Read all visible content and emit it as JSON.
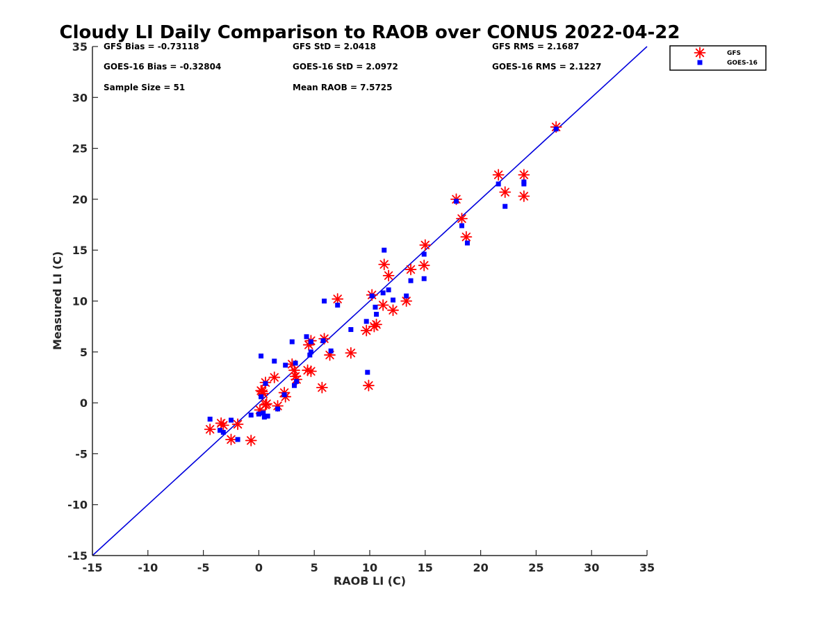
{
  "chart_data": {
    "type": "scatter",
    "title": "Cloudy LI Daily Comparison to RAOB over CONUS 2022-04-22",
    "xlabel": "RAOB LI (C)",
    "ylabel": "Measured LI (C)",
    "xlim": [
      -15,
      35
    ],
    "ylim": [
      -15,
      35
    ],
    "xticks": [
      -15,
      -10,
      -5,
      0,
      5,
      10,
      15,
      20,
      25,
      30,
      35
    ],
    "yticks": [
      -15,
      -10,
      -5,
      0,
      5,
      10,
      15,
      20,
      25,
      30,
      35
    ],
    "grid": false,
    "legend_position": "outside top-right",
    "reference_line": {
      "name": "1:1 line",
      "color": "#0000dd",
      "from": [
        -15,
        -15
      ],
      "to": [
        35,
        35
      ]
    },
    "stats": [
      [
        "GFS Bias = -0.73118",
        "GFS StD = 2.0418",
        "GFS RMS = 2.1687"
      ],
      [
        "GOES-16 Bias = -0.32804",
        "GOES-16 StD = 2.0972",
        "GOES-16 RMS = 2.1227"
      ],
      [
        "Sample Size = 51",
        "Mean RAOB = 7.5725",
        ""
      ]
    ],
    "series": [
      {
        "name": "GFS",
        "marker": "asterisk",
        "color": "#ff0000",
        "points": [
          [
            -4.4,
            -2.6
          ],
          [
            -3.4,
            -2.0
          ],
          [
            -3.2,
            -2.2
          ],
          [
            -2.5,
            -3.6
          ],
          [
            -1.9,
            -2.1
          ],
          [
            -0.7,
            -3.7
          ],
          [
            0.1,
            -0.7
          ],
          [
            0.2,
            1.2
          ],
          [
            0.3,
            1.1
          ],
          [
            0.4,
            0.9
          ],
          [
            0.6,
            2.0
          ],
          [
            0.6,
            -0.2
          ],
          [
            0.7,
            -0.1
          ],
          [
            1.4,
            2.5
          ],
          [
            1.7,
            -0.3
          ],
          [
            2.3,
            1.0
          ],
          [
            2.4,
            0.6
          ],
          [
            3.0,
            3.8
          ],
          [
            3.2,
            3.2
          ],
          [
            3.3,
            2.6
          ],
          [
            3.4,
            2.3
          ],
          [
            4.4,
            3.2
          ],
          [
            4.5,
            5.7
          ],
          [
            4.7,
            3.1
          ],
          [
            4.7,
            6.1
          ],
          [
            5.7,
            1.5
          ],
          [
            5.9,
            6.3
          ],
          [
            6.4,
            4.7
          ],
          [
            7.1,
            10.2
          ],
          [
            8.3,
            4.9
          ],
          [
            9.7,
            7.1
          ],
          [
            9.9,
            1.7
          ],
          [
            10.2,
            10.6
          ],
          [
            10.4,
            7.5
          ],
          [
            10.6,
            7.7
          ],
          [
            11.2,
            9.6
          ],
          [
            11.3,
            13.6
          ],
          [
            11.7,
            12.5
          ],
          [
            12.1,
            9.1
          ],
          [
            13.3,
            10.0
          ],
          [
            13.7,
            13.1
          ],
          [
            14.9,
            13.5
          ],
          [
            15.0,
            15.5
          ],
          [
            17.8,
            20.0
          ],
          [
            18.3,
            18.1
          ],
          [
            18.7,
            16.3
          ],
          [
            21.6,
            22.4
          ],
          [
            22.2,
            20.7
          ],
          [
            23.9,
            22.4
          ],
          [
            23.9,
            20.3
          ],
          [
            26.8,
            27.1
          ]
        ]
      },
      {
        "name": "GOES-16",
        "marker": "square",
        "color": "#0000ff",
        "points": [
          [
            -4.4,
            -1.6
          ],
          [
            -3.5,
            -2.7
          ],
          [
            -3.2,
            -2.9
          ],
          [
            -2.5,
            -1.7
          ],
          [
            -1.9,
            -3.6
          ],
          [
            -0.7,
            -1.2
          ],
          [
            0.0,
            -1.1
          ],
          [
            0.2,
            4.6
          ],
          [
            0.2,
            0.6
          ],
          [
            0.4,
            -1.0
          ],
          [
            0.5,
            -1.4
          ],
          [
            0.6,
            1.9
          ],
          [
            0.8,
            -1.3
          ],
          [
            1.4,
            4.1
          ],
          [
            1.7,
            -0.6
          ],
          [
            2.3,
            0.8
          ],
          [
            2.4,
            3.7
          ],
          [
            3.0,
            6.0
          ],
          [
            3.2,
            1.7
          ],
          [
            3.3,
            3.9
          ],
          [
            3.4,
            2.1
          ],
          [
            4.3,
            6.5
          ],
          [
            4.6,
            4.7
          ],
          [
            4.7,
            5.0
          ],
          [
            4.7,
            6.0
          ],
          [
            5.8,
            6.1
          ],
          [
            5.9,
            10.0
          ],
          [
            6.5,
            5.1
          ],
          [
            7.1,
            9.6
          ],
          [
            8.3,
            7.2
          ],
          [
            9.7,
            8.0
          ],
          [
            9.8,
            3.0
          ],
          [
            10.2,
            10.5
          ],
          [
            10.5,
            9.4
          ],
          [
            10.6,
            8.7
          ],
          [
            11.2,
            10.8
          ],
          [
            11.3,
            15.0
          ],
          [
            11.7,
            11.1
          ],
          [
            12.1,
            10.1
          ],
          [
            13.3,
            10.5
          ],
          [
            13.7,
            12.0
          ],
          [
            14.9,
            14.6
          ],
          [
            14.9,
            12.2
          ],
          [
            17.8,
            19.8
          ],
          [
            18.3,
            17.4
          ],
          [
            18.8,
            15.7
          ],
          [
            21.6,
            21.5
          ],
          [
            22.2,
            19.3
          ],
          [
            23.9,
            21.7
          ],
          [
            23.9,
            21.5
          ],
          [
            26.8,
            26.9
          ]
        ]
      }
    ]
  }
}
